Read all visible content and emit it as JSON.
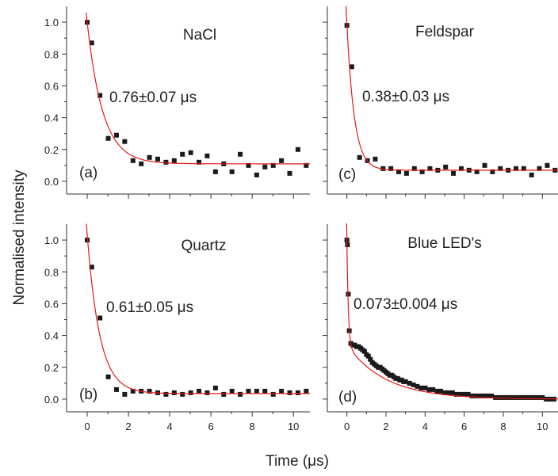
{
  "figure": {
    "ylabel": "Normalised intensity",
    "xlabel": "Time (μs)"
  },
  "colors": {
    "marker": "#1a1a1a",
    "fit": "#e31a1c",
    "axis": "#333333"
  },
  "chart_data": [
    {
      "type": "scatter",
      "panel": "(a)",
      "title": "NaCl",
      "annotation": "0.76±0.07 μs",
      "xlim": [
        -1,
        10.8
      ],
      "ylim": [
        -0.08,
        1.1
      ],
      "xticks": [
        0,
        2,
        4,
        6,
        8,
        10
      ],
      "yticks": [
        0.0,
        0.2,
        0.4,
        0.6,
        0.8,
        1.0
      ],
      "ytick_labels": [
        "0.0",
        "0.2",
        "0.4",
        "0.6",
        "0.8",
        "1.0"
      ],
      "show_xtick_labels": false,
      "show_ytick_labels": true,
      "fit": {
        "A": 0.89,
        "tau": 0.76,
        "y0": 0.11
      },
      "points": [
        [
          0.0,
          1.0
        ],
        [
          0.22,
          0.87
        ],
        [
          0.62,
          0.54
        ],
        [
          1.02,
          0.27
        ],
        [
          1.42,
          0.29
        ],
        [
          1.82,
          0.25
        ],
        [
          2.22,
          0.13
        ],
        [
          2.62,
          0.11
        ],
        [
          3.02,
          0.15
        ],
        [
          3.42,
          0.14
        ],
        [
          3.82,
          0.12
        ],
        [
          4.22,
          0.13
        ],
        [
          4.62,
          0.17
        ],
        [
          5.02,
          0.18
        ],
        [
          5.42,
          0.12
        ],
        [
          5.82,
          0.16
        ],
        [
          6.22,
          0.06
        ],
        [
          6.62,
          0.11
        ],
        [
          7.02,
          0.06
        ],
        [
          7.42,
          0.17
        ],
        [
          7.82,
          0.1
        ],
        [
          8.22,
          0.04
        ],
        [
          8.62,
          0.09
        ],
        [
          9.02,
          0.1
        ],
        [
          9.42,
          0.13
        ],
        [
          9.82,
          0.05
        ],
        [
          10.22,
          0.2
        ],
        [
          10.62,
          0.1
        ]
      ]
    },
    {
      "type": "scatter",
      "panel": "(c)",
      "title": "Feldspar",
      "annotation": "0.38±0.03 μs",
      "xlim": [
        -1,
        10.8
      ],
      "ylim": [
        -0.08,
        1.1
      ],
      "xticks": [
        0,
        2,
        4,
        6,
        8,
        10
      ],
      "yticks": [
        0.0,
        0.2,
        0.4,
        0.6,
        0.8,
        1.0
      ],
      "show_xtick_labels": false,
      "show_ytick_labels": false,
      "fit": {
        "A": 0.92,
        "tau": 0.38,
        "y0": 0.07
      },
      "points": [
        [
          0.0,
          0.98
        ],
        [
          0.25,
          0.72
        ],
        [
          0.65,
          0.15
        ],
        [
          1.05,
          0.13
        ],
        [
          1.45,
          0.14
        ],
        [
          1.85,
          0.08
        ],
        [
          2.25,
          0.08
        ],
        [
          2.65,
          0.06
        ],
        [
          3.05,
          0.05
        ],
        [
          3.45,
          0.08
        ],
        [
          3.85,
          0.06
        ],
        [
          4.25,
          0.08
        ],
        [
          4.65,
          0.07
        ],
        [
          5.05,
          0.09
        ],
        [
          5.45,
          0.05
        ],
        [
          5.85,
          0.08
        ],
        [
          6.25,
          0.07
        ],
        [
          6.65,
          0.06
        ],
        [
          7.05,
          0.1
        ],
        [
          7.45,
          0.06
        ],
        [
          7.85,
          0.08
        ],
        [
          8.25,
          0.07
        ],
        [
          8.65,
          0.08
        ],
        [
          9.05,
          0.08
        ],
        [
          9.45,
          0.04
        ],
        [
          9.85,
          0.08
        ],
        [
          10.25,
          0.1
        ],
        [
          10.65,
          0.07
        ]
      ]
    },
    {
      "type": "scatter",
      "panel": "(b)",
      "title": "Quartz",
      "annotation": "0.61±0.05 μs",
      "xlim": [
        -1,
        10.8
      ],
      "ylim": [
        -0.08,
        1.1
      ],
      "xticks": [
        0,
        2,
        4,
        6,
        8,
        10
      ],
      "xtick_labels": [
        "0",
        "2",
        "4",
        "6",
        "8",
        "10"
      ],
      "yticks": [
        0.0,
        0.2,
        0.4,
        0.6,
        0.8,
        1.0
      ],
      "ytick_labels": [
        "0.0",
        "0.2",
        "0.4",
        "0.6",
        "0.8",
        "1.0"
      ],
      "show_xtick_labels": true,
      "show_ytick_labels": true,
      "fit": {
        "A": 1.0,
        "tau": 0.61,
        "y0": 0.035
      },
      "points": [
        [
          0.0,
          1.0
        ],
        [
          0.22,
          0.83
        ],
        [
          0.62,
          0.51
        ],
        [
          1.02,
          0.14
        ],
        [
          1.42,
          0.06
        ],
        [
          1.82,
          0.03
        ],
        [
          2.22,
          0.05
        ],
        [
          2.62,
          0.05
        ],
        [
          3.02,
          0.05
        ],
        [
          3.42,
          0.04
        ],
        [
          3.82,
          0.03
        ],
        [
          4.22,
          0.04
        ],
        [
          4.62,
          0.03
        ],
        [
          5.02,
          0.04
        ],
        [
          5.42,
          0.05
        ],
        [
          5.82,
          0.04
        ],
        [
          6.22,
          0.07
        ],
        [
          6.62,
          0.03
        ],
        [
          7.02,
          0.05
        ],
        [
          7.42,
          0.03
        ],
        [
          7.82,
          0.05
        ],
        [
          8.22,
          0.05
        ],
        [
          8.62,
          0.05
        ],
        [
          9.02,
          0.03
        ],
        [
          9.42,
          0.05
        ],
        [
          9.82,
          0.04
        ],
        [
          10.22,
          0.04
        ],
        [
          10.62,
          0.05
        ]
      ]
    },
    {
      "type": "scatter",
      "panel": "(d)",
      "title": "Blue LED's",
      "annotation": "0.073±0.004 μs",
      "xlim": [
        -1,
        10.8
      ],
      "ylim": [
        -0.08,
        1.1
      ],
      "xticks": [
        0,
        2,
        4,
        6,
        8,
        10
      ],
      "xtick_labels": [
        "0",
        "2",
        "4",
        "6",
        "8",
        "10"
      ],
      "yticks": [
        0.0,
        0.2,
        0.4,
        0.6,
        0.8,
        1.0
      ],
      "show_xtick_labels": true,
      "show_ytick_labels": false,
      "fit": {
        "A1": 0.66,
        "tau1": 0.073,
        "A2": 0.34,
        "tau2": 2.0,
        "y0": 0.0
      },
      "points": [
        [
          0.0,
          1.0
        ],
        [
          0.03,
          0.97
        ],
        [
          0.07,
          0.66
        ],
        [
          0.12,
          0.43
        ],
        [
          0.2,
          0.35
        ],
        [
          0.3,
          0.34
        ],
        [
          0.4,
          0.34
        ],
        [
          0.5,
          0.33
        ],
        [
          0.6,
          0.33
        ],
        [
          0.7,
          0.32
        ],
        [
          0.8,
          0.31
        ],
        [
          0.9,
          0.3
        ],
        [
          1.0,
          0.28
        ],
        [
          1.1,
          0.27
        ],
        [
          1.2,
          0.25
        ],
        [
          1.3,
          0.23
        ],
        [
          1.4,
          0.22
        ],
        [
          1.5,
          0.21
        ],
        [
          1.6,
          0.2
        ],
        [
          1.7,
          0.2
        ],
        [
          1.8,
          0.19
        ],
        [
          1.9,
          0.18
        ],
        [
          2.0,
          0.17
        ],
        [
          2.1,
          0.16
        ],
        [
          2.2,
          0.15
        ],
        [
          2.3,
          0.15
        ],
        [
          2.4,
          0.14
        ],
        [
          2.5,
          0.13
        ],
        [
          2.6,
          0.13
        ],
        [
          2.7,
          0.12
        ],
        [
          2.8,
          0.12
        ],
        [
          2.9,
          0.11
        ],
        [
          3.0,
          0.11
        ],
        [
          3.2,
          0.1
        ],
        [
          3.4,
          0.09
        ],
        [
          3.6,
          0.08
        ],
        [
          3.8,
          0.07
        ],
        [
          4.0,
          0.07
        ],
        [
          4.2,
          0.06
        ],
        [
          4.4,
          0.06
        ],
        [
          4.6,
          0.05
        ],
        [
          4.8,
          0.05
        ],
        [
          5.0,
          0.04
        ],
        [
          5.2,
          0.04
        ],
        [
          5.4,
          0.04
        ],
        [
          5.6,
          0.03
        ],
        [
          5.8,
          0.03
        ],
        [
          6.0,
          0.03
        ],
        [
          6.2,
          0.03
        ],
        [
          6.4,
          0.02
        ],
        [
          6.6,
          0.02
        ],
        [
          6.8,
          0.02
        ],
        [
          7.0,
          0.02
        ],
        [
          7.2,
          0.02
        ],
        [
          7.4,
          0.02
        ],
        [
          7.6,
          0.01
        ],
        [
          7.8,
          0.01
        ],
        [
          8.0,
          0.01
        ],
        [
          8.2,
          0.01
        ],
        [
          8.4,
          0.01
        ],
        [
          8.6,
          0.01
        ],
        [
          8.8,
          0.01
        ],
        [
          9.0,
          0.01
        ],
        [
          9.2,
          0.01
        ],
        [
          9.4,
          0.01
        ],
        [
          9.6,
          0.01
        ],
        [
          9.8,
          0.01
        ],
        [
          10.0,
          0.01
        ],
        [
          10.2,
          0.0
        ],
        [
          10.4,
          0.0
        ],
        [
          10.6,
          0.0
        ]
      ]
    }
  ]
}
